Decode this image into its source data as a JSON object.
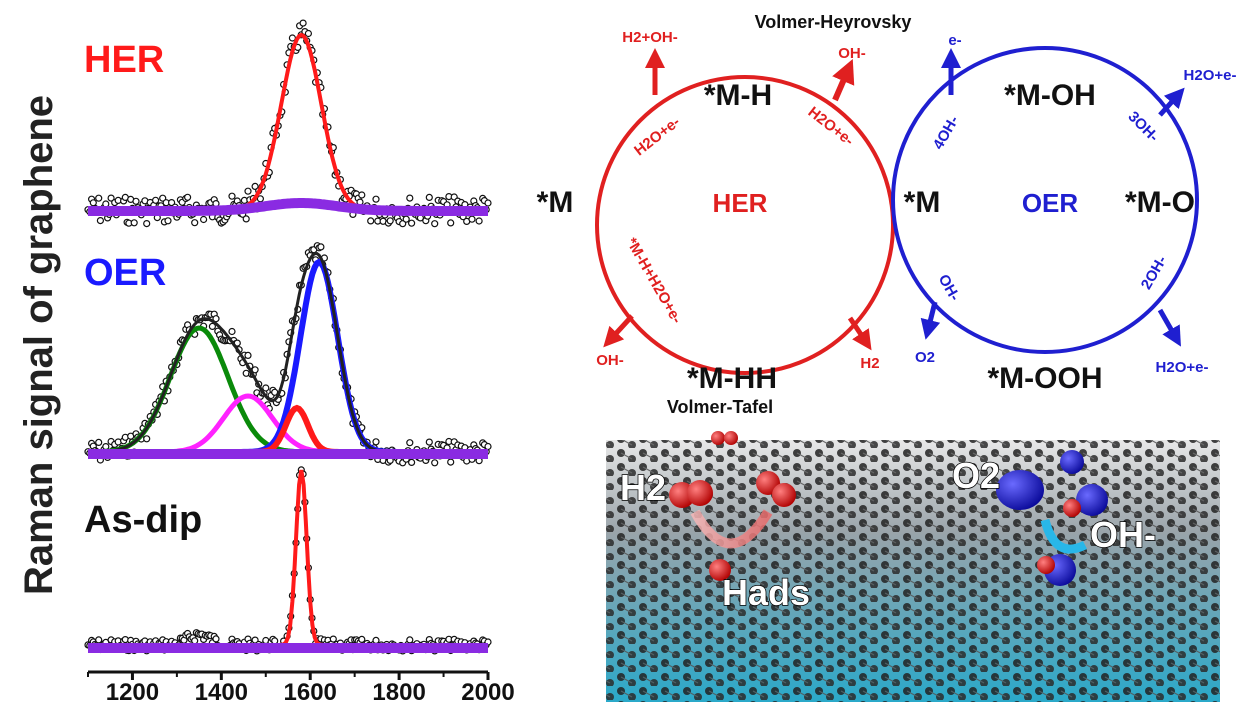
{
  "y_axis_label": "Raman signal of graphene",
  "spectra": {
    "panels": [
      {
        "label": "HER",
        "color": "#ff1a1a"
      },
      {
        "label": "OER",
        "color": "#1a1aff"
      },
      {
        "label": "As-dip",
        "color": "#111111"
      }
    ],
    "x_ticks": [
      "1200",
      "1400",
      "1600",
      "1800",
      "2000"
    ]
  },
  "cycle_diagram": {
    "her": {
      "center": "HER",
      "color": "#e02020",
      "species": {
        "left": "*M",
        "top": "*M-H",
        "bottom": "*M-HH"
      },
      "arrows": {
        "top_left": "H2+OH-",
        "top_right": "OH-",
        "bottom_left": "OH-",
        "bottom_right": "H2"
      },
      "inner_labels": {
        "upper_left": "H2O+e-",
        "upper_right": "H2O+e-",
        "lower_left": "*M-H+H2O+e-"
      }
    },
    "oer": {
      "center": "OER",
      "color": "#1f1fd0",
      "species": {
        "left": "*M",
        "top": "*M-OH",
        "right": "*M-O",
        "bottom": "*M-OOH"
      },
      "arrows": {
        "top_left": "e-",
        "top_right": "H2O+e-",
        "bottom_left": "O2",
        "bottom_right": "H2O+e-"
      },
      "inner_labels": {
        "upper_left": "4OH-",
        "upper_right": "3OH-",
        "lower_left": "OH-",
        "lower_right": "2OH-"
      }
    },
    "mechanisms": {
      "top": "Volmer-Heyrovsky",
      "bottom": "Volmer-Tafel"
    }
  },
  "surface_image": {
    "labels": {
      "h2": "H2",
      "hads": "Hads",
      "o2": "O2",
      "oh": "OH-"
    }
  }
}
